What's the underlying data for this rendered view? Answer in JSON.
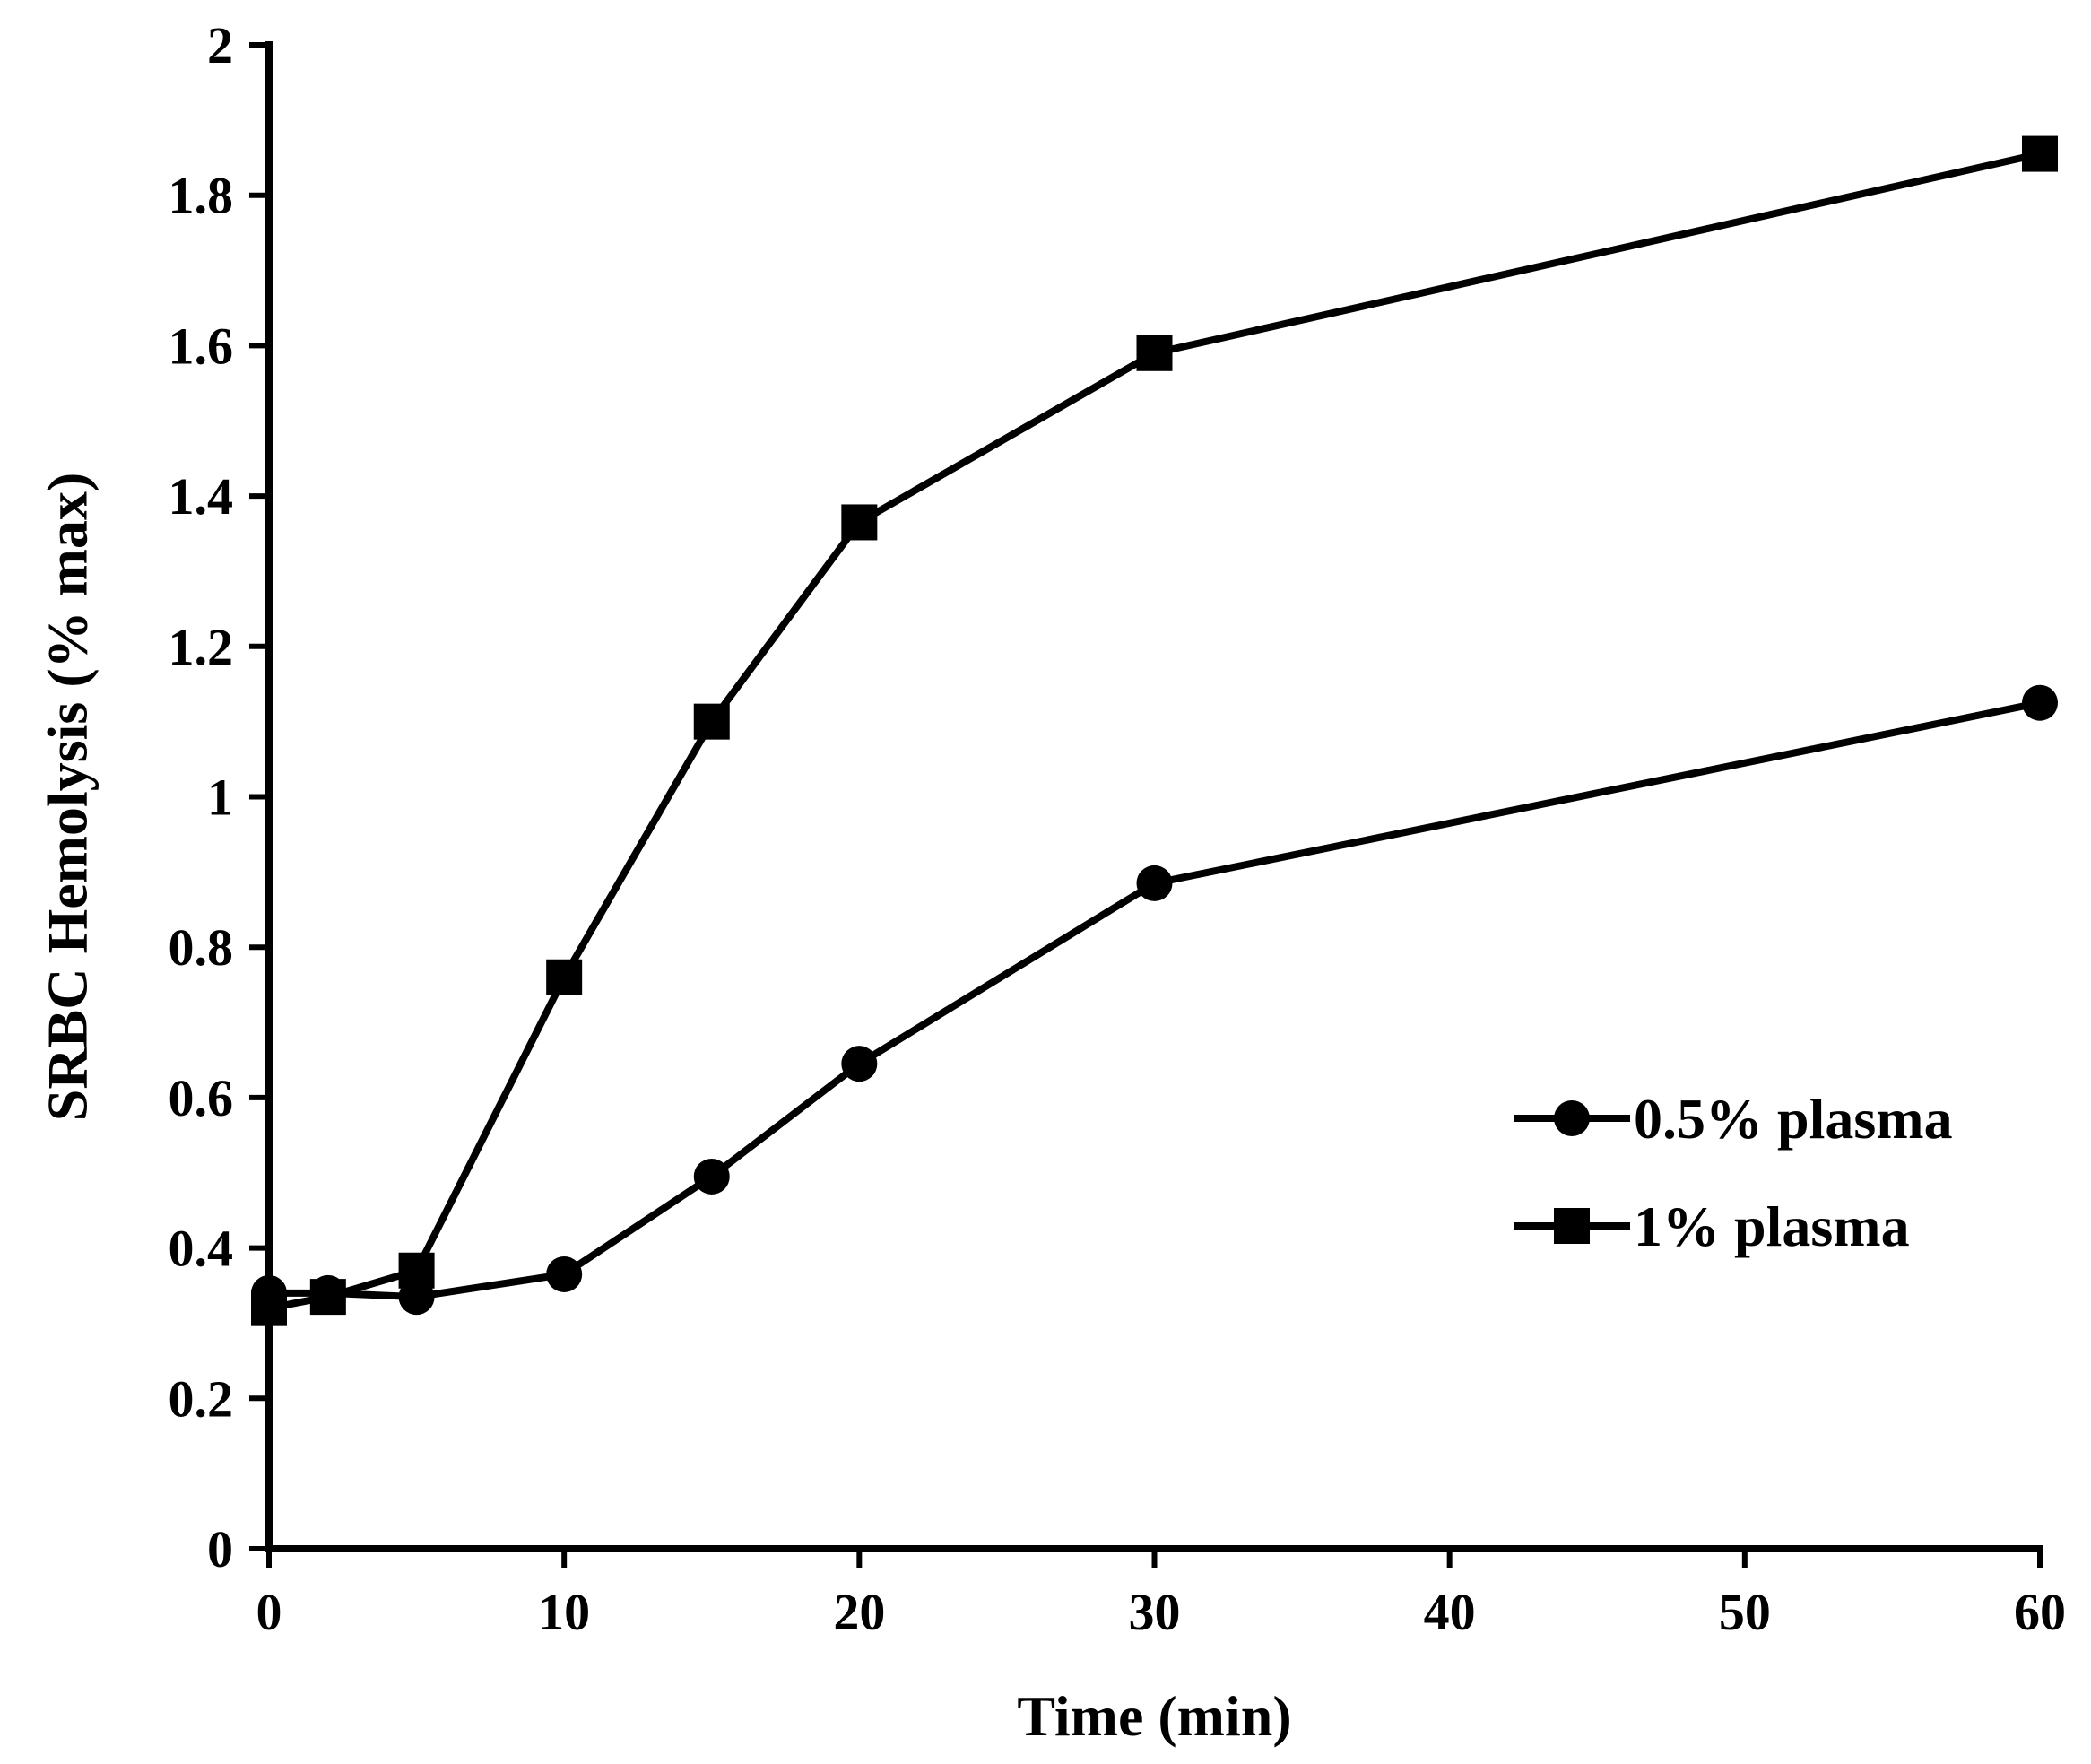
{
  "chart_data": {
    "type": "line",
    "title": "",
    "xlabel": "Time (min)",
    "ylabel": "SRBC Hemolysis (% max)",
    "xlim": [
      0,
      60
    ],
    "ylim": [
      0,
      2
    ],
    "x_ticks": [
      0,
      10,
      20,
      30,
      40,
      50,
      60
    ],
    "x_tick_labels": [
      "0",
      "10",
      "20",
      "30",
      "40",
      "50",
      "60"
    ],
    "y_ticks": [
      0,
      0.2,
      0.4,
      0.6,
      0.8,
      1.0,
      1.2,
      1.4,
      1.6,
      1.8,
      2.0
    ],
    "y_tick_labels": [
      "0",
      "0.2",
      "0.4",
      "0.6",
      "0.8",
      "1",
      "1.2",
      "1.4",
      "1.6",
      "1.8",
      "2"
    ],
    "grid": false,
    "legend_position": "right",
    "series": [
      {
        "name": "0.5% plasma",
        "marker": "circle",
        "x": [
          0,
          2,
          5,
          10,
          15,
          20,
          30,
          60
        ],
        "y": [
          0.34,
          0.34,
          0.335,
          0.365,
          0.495,
          0.645,
          0.885,
          1.125
        ]
      },
      {
        "name": "1% plasma",
        "marker": "square",
        "x": [
          0,
          2,
          5,
          10,
          15,
          20,
          30,
          60
        ],
        "y": [
          0.32,
          0.335,
          0.37,
          0.76,
          1.1,
          1.365,
          1.59,
          1.855
        ]
      }
    ]
  },
  "colors": {
    "line": "#000000",
    "background": "#ffffff"
  }
}
